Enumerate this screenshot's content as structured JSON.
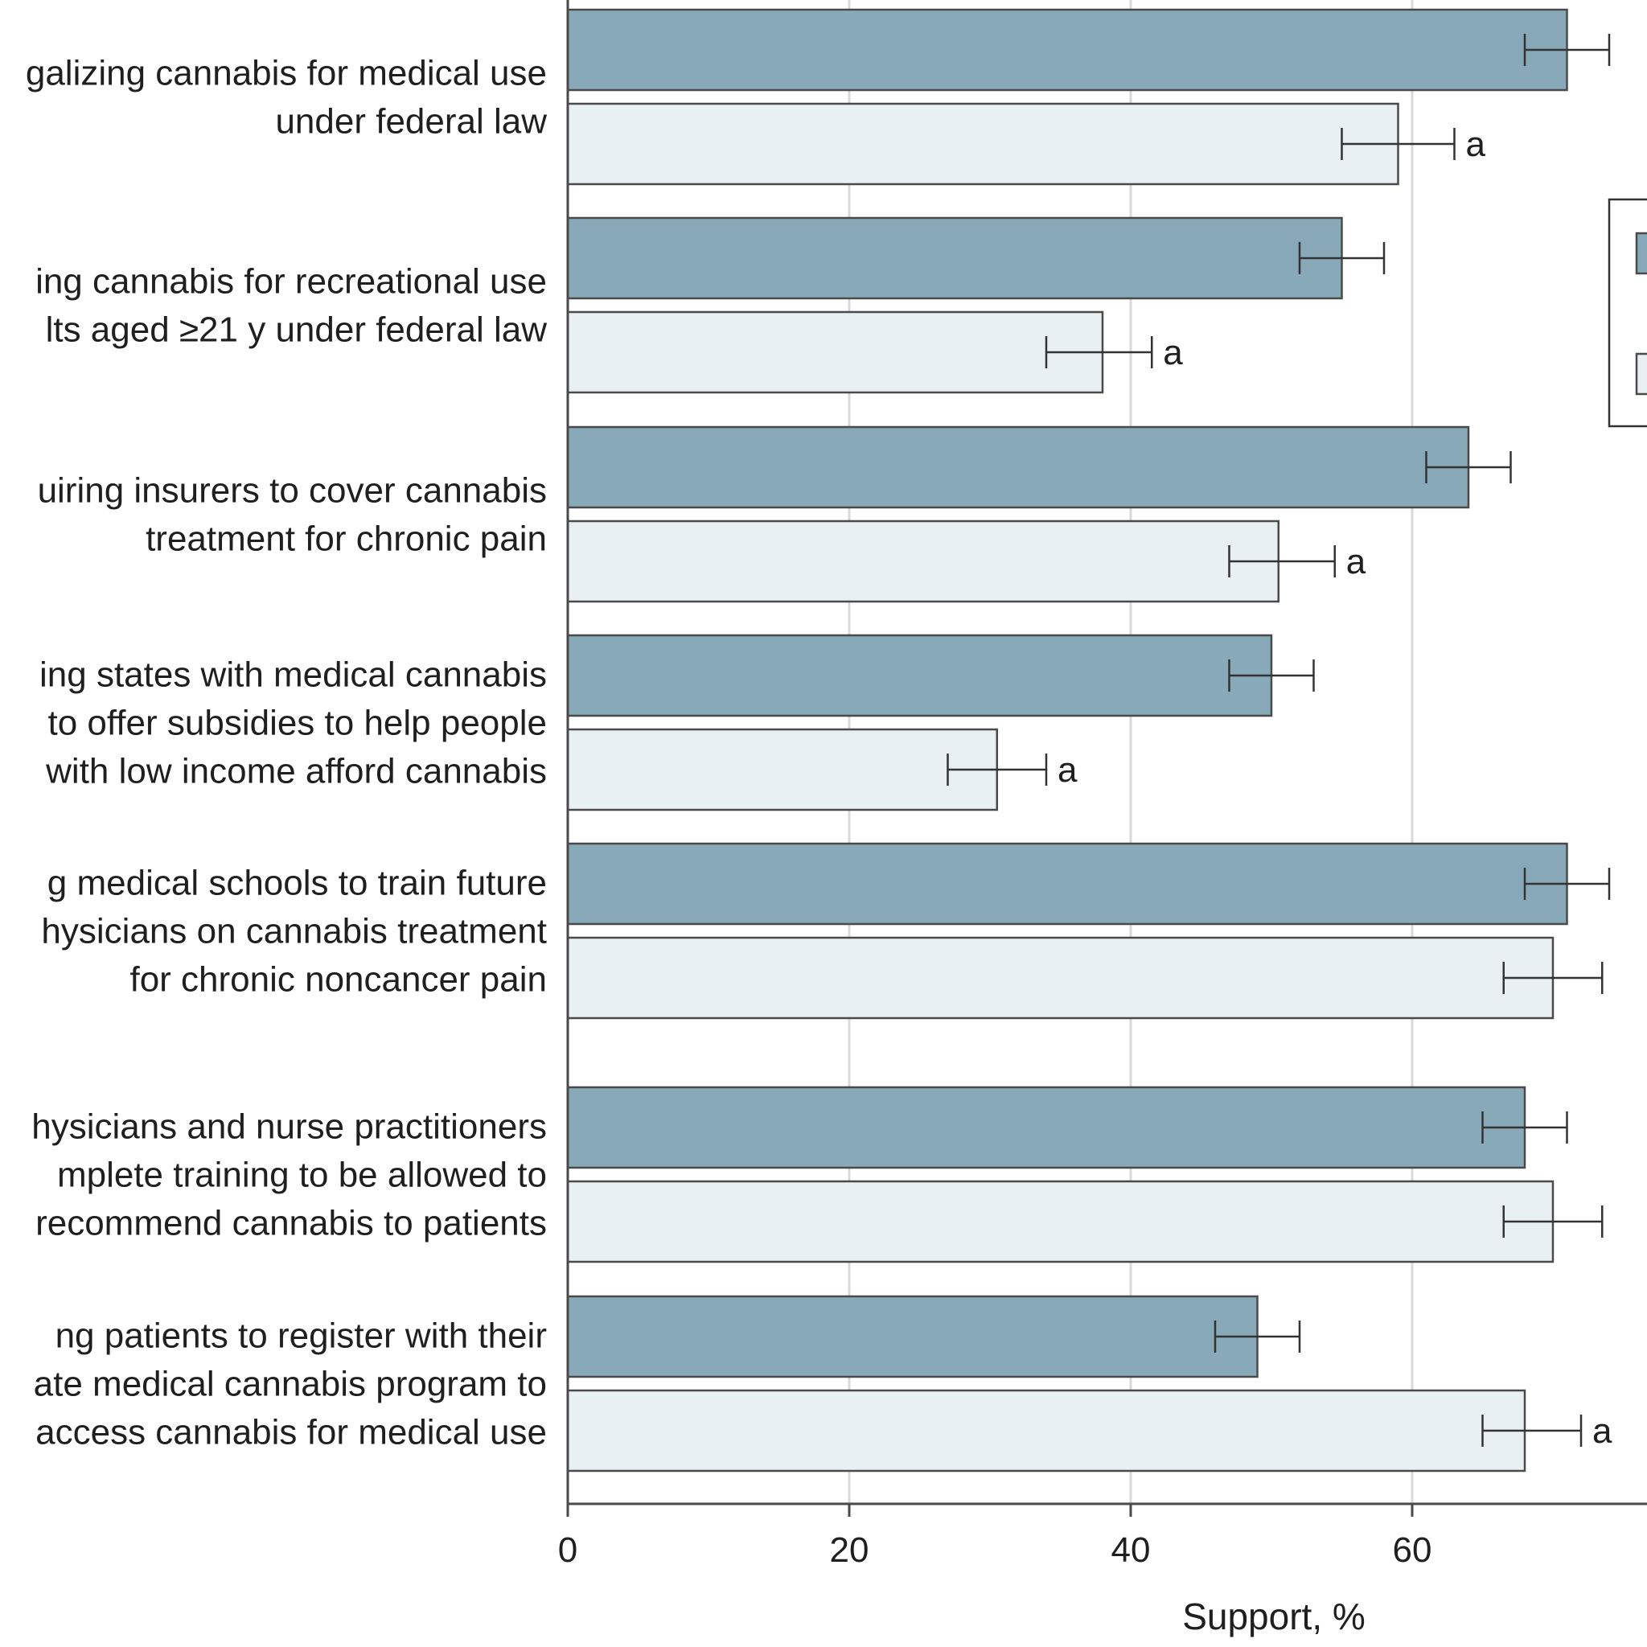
{
  "chart_data": {
    "type": "bar",
    "orientation": "horizontal",
    "xlabel": "Support, %",
    "xlim": [
      0,
      75
    ],
    "xticks": [
      0,
      20,
      40,
      60
    ],
    "grid": "vertical",
    "colors": {
      "series1": "#87a9b8",
      "series2": "#e8f0f3",
      "edge": "#4a4a4a",
      "grid": "#d9d9d9"
    },
    "categories": [
      {
        "lines": [
          "galizing cannabis for medical use",
          "under federal law"
        ]
      },
      {
        "lines": [
          "ing cannabis for recreational use",
          "lts aged ≥21 y under federal law"
        ]
      },
      {
        "lines": [
          "uiring insurers to cover cannabis",
          "treatment for chronic pain"
        ]
      },
      {
        "lines": [
          "ing states with medical cannabis",
          "to offer subsidies to help people",
          "with low income afford cannabis"
        ]
      },
      {
        "lines": [
          "g medical schools to train future",
          "hysicians on cannabis treatment",
          "for chronic noncancer pain"
        ]
      },
      {
        "lines": [
          "hysicians and nurse practitioners",
          "mplete training to be allowed to",
          "recommend cannabis to patients"
        ]
      },
      {
        "lines": [
          "ng patients to register with their",
          "ate medical cannabis program to",
          "access cannabis for medical use"
        ]
      }
    ],
    "series": [
      {
        "values": [
          71,
          55,
          64,
          50,
          71,
          68,
          49
        ],
        "ci_low": [
          68,
          52,
          61,
          47,
          68,
          65,
          46
        ],
        "ci_high": [
          74,
          58,
          67,
          53,
          74,
          71,
          52
        ],
        "sig_marks": [
          "",
          "",
          "",
          "",
          "",
          "",
          ""
        ]
      },
      {
        "values": [
          59,
          38,
          50.5,
          30.5,
          70,
          70,
          68
        ],
        "ci_low": [
          55,
          34,
          47,
          27,
          66.5,
          66.5,
          65
        ],
        "ci_high": [
          63,
          41.5,
          54.5,
          34,
          73.5,
          73.5,
          72
        ],
        "sig_marks": [
          "a",
          "a",
          "a",
          "a",
          "",
          "",
          "a"
        ]
      }
    ]
  }
}
